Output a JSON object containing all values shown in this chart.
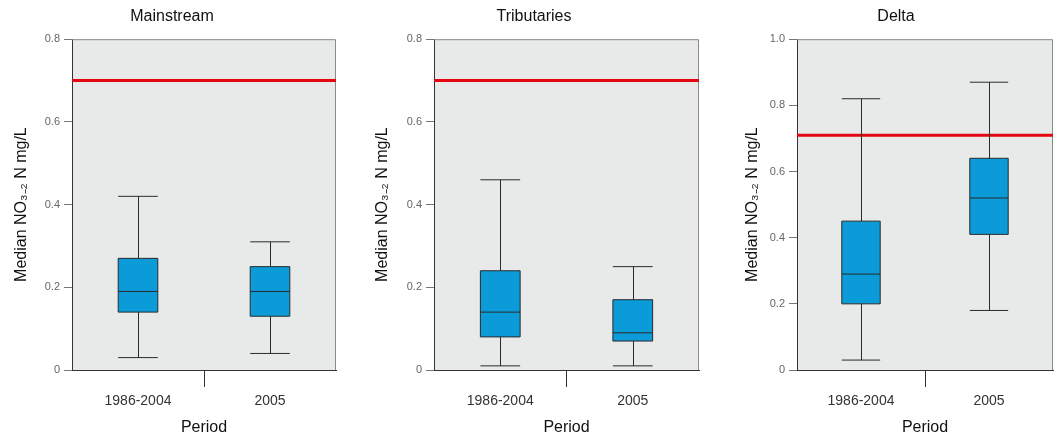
{
  "chart_data": [
    {
      "type": "box",
      "title": "Mainstream",
      "xlabel": "Period",
      "ylabel": "Median NO₃₋₂ N mg/L",
      "categories": [
        "1986-2004",
        "2005"
      ],
      "color": "#0b9bd9",
      "boxes": [
        {
          "low": 0.03,
          "q1": 0.14,
          "median": 0.19,
          "q3": 0.27,
          "high": 0.42
        },
        {
          "low": 0.04,
          "q1": 0.13,
          "median": 0.19,
          "q3": 0.25,
          "high": 0.31
        }
      ],
      "ylim": [
        0,
        0.8
      ],
      "yticks": [
        0,
        0.2,
        0.4,
        0.6,
        0.8
      ],
      "ref_lines": [
        {
          "axis": "y",
          "value": 0.7,
          "color": "#e30613"
        }
      ],
      "grid": false
    },
    {
      "type": "box",
      "title": "Tributaries",
      "xlabel": "Period",
      "ylabel": "Median NO₃₋₂ N mg/L",
      "categories": [
        "1986-2004",
        "2005"
      ],
      "color": "#0b9bd9",
      "boxes": [
        {
          "low": 0.01,
          "q1": 0.08,
          "median": 0.14,
          "q3": 0.24,
          "high": 0.46
        },
        {
          "low": 0.01,
          "q1": 0.07,
          "median": 0.09,
          "q3": 0.17,
          "high": 0.25
        }
      ],
      "ylim": [
        0,
        0.8
      ],
      "yticks": [
        0,
        0.2,
        0.4,
        0.6,
        0.8
      ],
      "ref_lines": [
        {
          "axis": "y",
          "value": 0.7,
          "color": "#e30613"
        }
      ],
      "grid": false
    },
    {
      "type": "box",
      "title": "Delta",
      "xlabel": "Period",
      "ylabel": "Median NO₃₋₂ N mg/L",
      "categories": [
        "1986-2004",
        "2005"
      ],
      "color": "#0b9bd9",
      "boxes": [
        {
          "low": 0.03,
          "q1": 0.2,
          "median": 0.29,
          "q3": 0.45,
          "high": 0.82
        },
        {
          "low": 0.18,
          "q1": 0.41,
          "median": 0.52,
          "q3": 0.64,
          "high": 0.87
        }
      ],
      "ylim": [
        0,
        1
      ],
      "yticks": [
        0,
        0.2,
        0.4,
        0.6,
        0.8,
        {
          "value": 1,
          "label": "1.0"
        }
      ],
      "ref_lines": [
        {
          "axis": "y",
          "value": 0.71,
          "color": "#e30613"
        }
      ],
      "grid": false
    }
  ]
}
